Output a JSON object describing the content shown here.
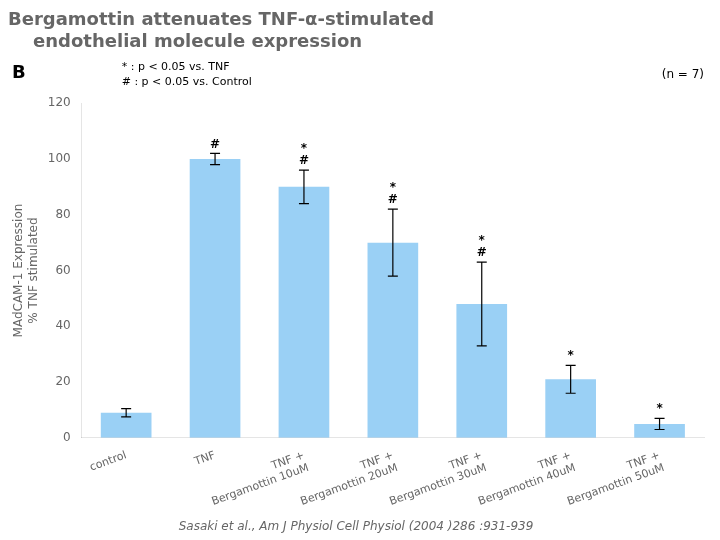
{
  "chart_data": {
    "type": "bar",
    "title": [
      "Bergamottin attenuates TNF-α-stimulated",
      "    endothelial molecule expression"
    ],
    "categories": [
      "control",
      "TNF",
      "TNF +\nBergamottin 10uM",
      "TNF +\nBergamottin 20uM",
      "TNF +\nBergamottin 30uM",
      "TNF +\nBergamottin 40uM",
      "TNF +\nBergamottin 50uM"
    ],
    "values": [
      9,
      100,
      90,
      70,
      48,
      21,
      5
    ],
    "errors": [
      1.5,
      2,
      6,
      12,
      15,
      5,
      2
    ],
    "bar_marks": [
      null,
      [
        "#"
      ],
      [
        "#",
        "*"
      ],
      [
        "#",
        "*"
      ],
      [
        "#",
        "*"
      ],
      [
        "*"
      ],
      [
        "*"
      ]
    ],
    "ylabel": "MAdCAM-1 Expression\n% TNF stimulated",
    "ylim": [
      0,
      120
    ],
    "yticks": [
      0,
      20,
      40,
      60,
      80,
      100,
      120
    ],
    "grid": false,
    "annotations": {
      "panel_label": "B",
      "legend_star": "* : p < 0.05 vs. TNF",
      "legend_hash": "# : p < 0.05 vs. Control",
      "n_label": "(n = 7)"
    },
    "caption": "Sasaki et al., Am J Physiol Cell Physiol (2004 )286 :931-939"
  }
}
